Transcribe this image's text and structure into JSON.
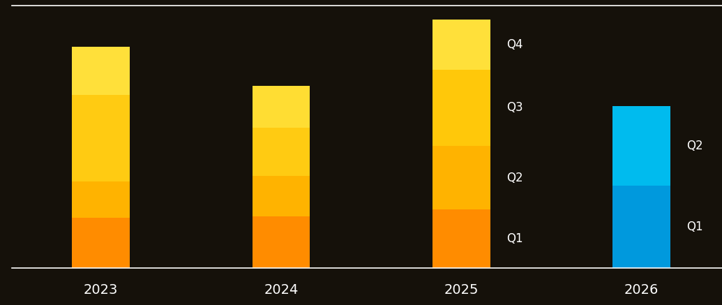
{
  "chart_data": {
    "type": "bar",
    "stacked": true,
    "categories": [
      "2023",
      "2024",
      "2025",
      "2026"
    ],
    "series": [
      {
        "name": "Q1",
        "colors": [
          "#ff8c00",
          "#ff8c00",
          "#ff8c00",
          "#0099dd"
        ],
        "values": [
          72,
          74,
          84,
          118
        ]
      },
      {
        "name": "Q2",
        "colors": [
          "#ffb300",
          "#ffb300",
          "#ffb300",
          "#00bbee"
        ],
        "values": [
          52,
          58,
          91,
          114
        ]
      },
      {
        "name": "Q3",
        "colors": [
          "#ffcb12",
          "#ffcb12",
          "#ffc80a",
          null
        ],
        "values": [
          124,
          69,
          109,
          null
        ]
      },
      {
        "name": "Q4",
        "colors": [
          "#ffe03a",
          "#ffdd33",
          "#ffe03a",
          null
        ],
        "values": [
          69,
          60,
          72,
          null
        ]
      }
    ],
    "ylim": [
      0,
      376
    ],
    "yticks": [],
    "tick_labels": "x"
  }
}
